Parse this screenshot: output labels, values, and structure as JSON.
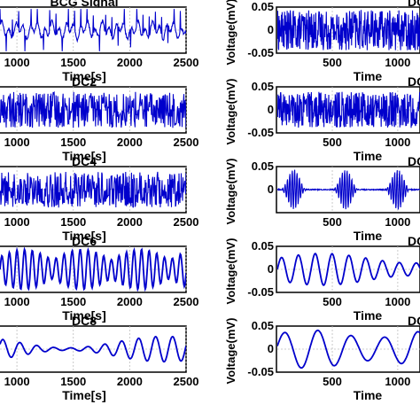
{
  "chart_data": [
    {
      "type": "line",
      "title": "BCG Signal",
      "xlabel": "Time[s]",
      "ylabel": "",
      "xticks": [
        "1000",
        "1500",
        "2000",
        "2500"
      ],
      "yticks": [],
      "xlim": [
        850,
        2500
      ],
      "ylim": [
        -0.08,
        0.08
      ],
      "grid": true,
      "series": [
        {
          "color": "#0000cc",
          "style": "bcg"
        }
      ]
    },
    {
      "type": "line",
      "title": "DC",
      "xlabel": "Time",
      "ylabel": "Voltage(mV)",
      "xticks": [
        "500",
        "1000"
      ],
      "yticks": [
        "0.05",
        "0",
        "-0.05"
      ],
      "xlim": [
        80,
        1170
      ],
      "ylim": [
        -0.05,
        0.05
      ],
      "grid": true,
      "series": [
        {
          "color": "#0000cc",
          "style": "noise_dense"
        }
      ]
    },
    {
      "type": "line",
      "title": "DC2",
      "xlabel": "Time[s]",
      "ylabel": "",
      "xticks": [
        "1000",
        "1500",
        "2000",
        "2500"
      ],
      "yticks": [],
      "xlim": [
        850,
        2500
      ],
      "ylim": [
        -0.05,
        0.05
      ],
      "grid": true,
      "series": [
        {
          "color": "#0000cc",
          "style": "noise"
        }
      ]
    },
    {
      "type": "line",
      "title": "DC",
      "xlabel": "Time",
      "ylabel": "Voltage(mV)",
      "xticks": [
        "500",
        "1000"
      ],
      "yticks": [
        "0.05",
        "0",
        "-0.05"
      ],
      "xlim": [
        80,
        1170
      ],
      "ylim": [
        -0.05,
        0.05
      ],
      "grid": true,
      "series": [
        {
          "color": "#0000cc",
          "style": "noise"
        }
      ]
    },
    {
      "type": "line",
      "title": "DC4",
      "xlabel": "Time[s]",
      "ylabel": "",
      "xticks": [
        "1000",
        "1500",
        "2000",
        "2500"
      ],
      "yticks": [],
      "xlim": [
        850,
        2500
      ],
      "ylim": [
        -0.05,
        0.05
      ],
      "grid": true,
      "series": [
        {
          "color": "#0000cc",
          "style": "noise"
        }
      ]
    },
    {
      "type": "line",
      "title": "DC",
      "xlabel": "Time",
      "ylabel": "Voltage(mV)",
      "xticks": [
        "500",
        "1000"
      ],
      "yticks": [
        "0.05",
        "0"
      ],
      "xlim": [
        80,
        1170
      ],
      "ylim": [
        -0.05,
        0.05
      ],
      "grid": true,
      "series": [
        {
          "color": "#0000cc",
          "style": "bursts"
        }
      ]
    },
    {
      "type": "line",
      "title": "DC6",
      "xlabel": "Time[s]",
      "ylabel": "",
      "xticks": [
        "1000",
        "1500",
        "2000",
        "2500"
      ],
      "yticks": [],
      "xlim": [
        850,
        2500
      ],
      "ylim": [
        -0.05,
        0.05
      ],
      "grid": true,
      "series": [
        {
          "color": "#0000cc",
          "style": "medium"
        }
      ]
    },
    {
      "type": "line",
      "title": "DC",
      "xlabel": "Time",
      "ylabel": "Voltage(mV)",
      "xticks": [
        "500",
        "1000"
      ],
      "yticks": [
        "0.05",
        "0",
        "-0.05"
      ],
      "xlim": [
        80,
        1170
      ],
      "ylim": [
        -0.05,
        0.05
      ],
      "grid": true,
      "series": [
        {
          "color": "#0000cc",
          "style": "slow"
        }
      ]
    },
    {
      "type": "line",
      "title": "DC8",
      "xlabel": "Time[s]",
      "ylabel": "",
      "xticks": [
        "1000",
        "1500",
        "2000",
        "2500"
      ],
      "yticks": [],
      "xlim": [
        850,
        2500
      ],
      "ylim": [
        -0.05,
        0.05
      ],
      "grid": true,
      "series": [
        {
          "color": "#0000cc",
          "style": "slow_wide"
        }
      ]
    },
    {
      "type": "line",
      "title": "DC",
      "xlabel": "Time",
      "ylabel": "Voltage(mV)",
      "xticks": [
        "500",
        "1000"
      ],
      "yticks": [
        "0.05",
        "0",
        "-0.05"
      ],
      "xlim": [
        80,
        1170
      ],
      "ylim": [
        -0.05,
        0.05
      ],
      "grid": true,
      "series": [
        {
          "color": "#0000cc",
          "style": "slowest"
        }
      ]
    }
  ]
}
